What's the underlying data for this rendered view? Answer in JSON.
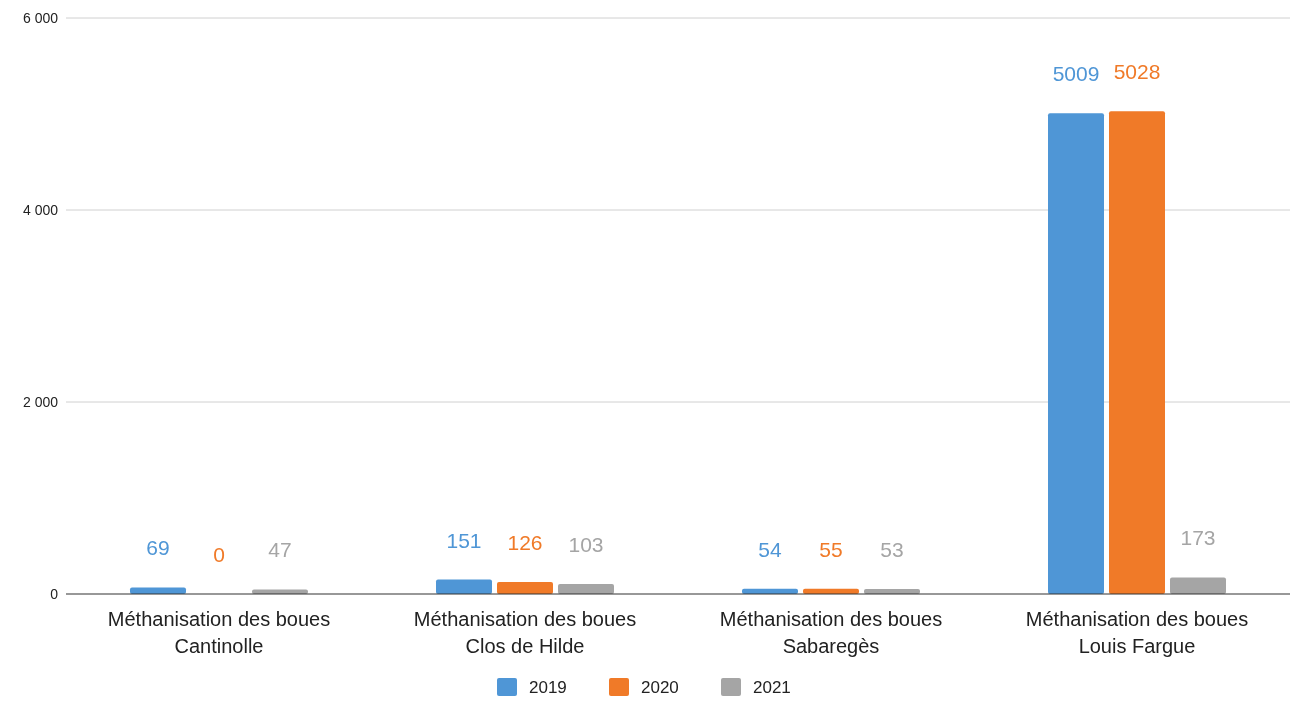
{
  "chart_data": {
    "type": "bar",
    "categories": [
      "Méthanisation des boues Cantinolle",
      "Méthanisation des boues Clos de Hilde",
      "Méthanisation des boues Sabaregès",
      "Méthanisation des boues Louis Fargue"
    ],
    "series": [
      {
        "name": "2019",
        "color": "#4f96d6",
        "values": [
          69,
          151,
          54,
          5009
        ]
      },
      {
        "name": "2020",
        "color": "#f07a28",
        "values": [
          0,
          126,
          55,
          5028
        ]
      },
      {
        "name": "2021",
        "color": "#a5a5a5",
        "values": [
          47,
          103,
          53,
          173
        ]
      }
    ],
    "ylim": [
      0,
      6000
    ],
    "yticks": [
      {
        "value": 0,
        "label": "0"
      },
      {
        "value": 2000,
        "label": "2 000"
      },
      {
        "value": 4000,
        "label": "4 000"
      },
      {
        "value": 6000,
        "label": "6 000"
      }
    ],
    "grid": "y",
    "legend": "bottom",
    "data_labels": true
  }
}
